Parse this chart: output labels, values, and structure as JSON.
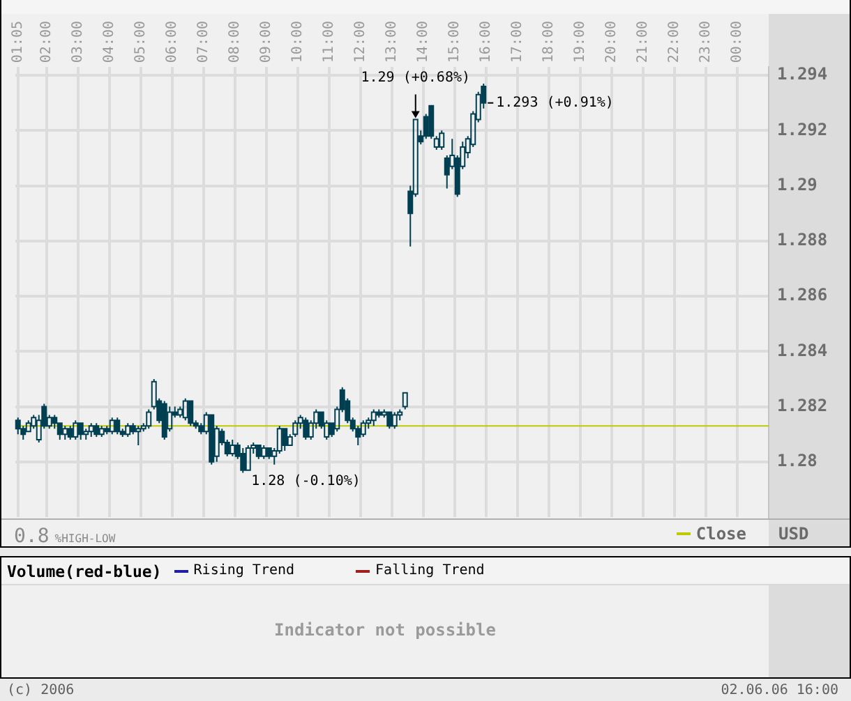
{
  "chart_data": [
    {
      "type": "candlestick",
      "color": "#003f52",
      "x": [
        1.0833,
        1.25,
        1.4167,
        1.5833,
        1.75,
        1.9167,
        2.0833,
        2.25,
        2.4167,
        2.5833,
        2.75,
        2.9167,
        3.0833,
        3.25,
        3.4167,
        3.5833,
        3.75,
        3.9167,
        4.0833,
        4.25,
        4.4167,
        4.5833,
        4.75,
        4.9167,
        5.0833,
        5.25,
        5.4167,
        5.5833,
        5.75,
        5.9167,
        6.0833,
        6.25,
        6.4167,
        6.5833,
        6.75,
        6.9167,
        7.0833,
        7.25,
        7.4167,
        7.5833,
        7.75,
        7.9167,
        8.0833,
        8.25,
        8.4167,
        8.5833,
        8.75,
        8.9167,
        9.0833,
        9.25,
        9.4167,
        9.5833,
        9.75,
        9.9167,
        10.0833,
        10.25,
        10.4167,
        10.5833,
        10.75,
        10.9167,
        11.0833,
        11.25,
        11.4167,
        11.5833,
        11.75,
        11.9167,
        12.0833,
        12.25,
        12.4167,
        12.5833,
        12.75,
        12.9167,
        13.0833,
        13.25,
        13.4167,
        13.5833,
        13.75,
        13.9167,
        14.0833,
        14.25,
        14.4167,
        14.5833,
        14.75,
        14.9167,
        15.0833,
        15.25,
        15.4167,
        15.5833,
        15.75,
        15.9167
      ],
      "ohlc": [
        [
          1.2815,
          1.2816,
          1.281,
          1.2812
        ],
        [
          1.2812,
          1.2813,
          1.2808,
          1.281
        ],
        [
          1.2811,
          1.2815,
          1.2811,
          1.2814
        ],
        [
          1.2813,
          1.2817,
          1.2812,
          1.2816
        ],
        [
          1.2808,
          1.2817,
          1.2807,
          1.2815
        ],
        [
          1.282,
          1.2821,
          1.2812,
          1.2813
        ],
        [
          1.2813,
          1.2817,
          1.2812,
          1.2816
        ],
        [
          1.2816,
          1.2817,
          1.2812,
          1.2814
        ],
        [
          1.2814,
          1.2814,
          1.2808,
          1.281
        ],
        [
          1.281,
          1.2813,
          1.2808,
          1.2812
        ],
        [
          1.2812,
          1.2813,
          1.2808,
          1.2809
        ],
        [
          1.2809,
          1.2815,
          1.2808,
          1.2814
        ],
        [
          1.2814,
          1.2814,
          1.2808,
          1.281
        ],
        [
          1.281,
          1.2812,
          1.2808,
          1.2811
        ],
        [
          1.2811,
          1.2814,
          1.2809,
          1.2813
        ],
        [
          1.2813,
          1.2814,
          1.2809,
          1.281
        ],
        [
          1.281,
          1.2813,
          1.2809,
          1.2812
        ],
        [
          1.2812,
          1.2813,
          1.281,
          1.2811
        ],
        [
          1.2811,
          1.2816,
          1.281,
          1.2815
        ],
        [
          1.2815,
          1.2816,
          1.281,
          1.2811
        ],
        [
          1.2811,
          1.2812,
          1.2809,
          1.281
        ],
        [
          1.281,
          1.2814,
          1.2809,
          1.2813
        ],
        [
          1.2813,
          1.2814,
          1.281,
          1.2811
        ],
        [
          1.2811,
          1.2813,
          1.2806,
          1.2812
        ],
        [
          1.2812,
          1.2814,
          1.2811,
          1.2813
        ],
        [
          1.2813,
          1.2819,
          1.2812,
          1.2818
        ],
        [
          1.282,
          1.283,
          1.2819,
          1.2829
        ],
        [
          1.2822,
          1.2823,
          1.2814,
          1.2815
        ],
        [
          1.2821,
          1.2822,
          1.2808,
          1.2809
        ],
        [
          1.2812,
          1.282,
          1.2811,
          1.2818
        ],
        [
          1.2818,
          1.282,
          1.2816,
          1.2817
        ],
        [
          1.2817,
          1.282,
          1.2816,
          1.2819
        ],
        [
          1.2816,
          1.2823,
          1.2815,
          1.2822
        ],
        [
          1.2822,
          1.2822,
          1.2813,
          1.2814
        ],
        [
          1.2814,
          1.2815,
          1.2812,
          1.2813
        ],
        [
          1.2813,
          1.2814,
          1.281,
          1.2811
        ],
        [
          1.2811,
          1.2818,
          1.281,
          1.2817
        ],
        [
          1.2817,
          1.2817,
          1.2799,
          1.28
        ],
        [
          1.2802,
          1.2813,
          1.28,
          1.2812
        ],
        [
          1.2811,
          1.2812,
          1.2806,
          1.2807
        ],
        [
          1.2807,
          1.2808,
          1.2802,
          1.2803
        ],
        [
          1.2803,
          1.2808,
          1.2802,
          1.2806
        ],
        [
          1.2806,
          1.2807,
          1.2801,
          1.2802
        ],
        [
          1.2803,
          1.2805,
          1.2796,
          1.2797
        ],
        [
          1.2797,
          1.2806,
          1.2797,
          1.2805
        ],
        [
          1.2805,
          1.2807,
          1.2803,
          1.2806
        ],
        [
          1.2806,
          1.2806,
          1.2801,
          1.2802
        ],
        [
          1.2802,
          1.2806,
          1.2801,
          1.2805
        ],
        [
          1.2805,
          1.2805,
          1.2801,
          1.2802
        ],
        [
          1.2802,
          1.2805,
          1.2799,
          1.2804
        ],
        [
          1.2804,
          1.2813,
          1.2803,
          1.2812
        ],
        [
          1.2812,
          1.2812,
          1.2804,
          1.2806
        ],
        [
          1.2806,
          1.281,
          1.2806,
          1.2809
        ],
        [
          1.281,
          1.2815,
          1.2809,
          1.2814
        ],
        [
          1.2814,
          1.2817,
          1.2812,
          1.2816
        ],
        [
          1.2815,
          1.2816,
          1.2808,
          1.2809
        ],
        [
          1.2809,
          1.2815,
          1.2808,
          1.2814
        ],
        [
          1.2814,
          1.2819,
          1.2812,
          1.2818
        ],
        [
          1.2818,
          1.2818,
          1.2812,
          1.2813
        ],
        [
          1.2809,
          1.2815,
          1.2808,
          1.2814
        ],
        [
          1.2814,
          1.2814,
          1.2809,
          1.281
        ],
        [
          1.2812,
          1.282,
          1.2811,
          1.2819
        ],
        [
          1.2826,
          1.2827,
          1.2818,
          1.2819
        ],
        [
          1.2822,
          1.2823,
          1.2814,
          1.2815
        ],
        [
          1.2815,
          1.2816,
          1.2811,
          1.2812
        ],
        [
          1.2812,
          1.2813,
          1.2806,
          1.2809
        ],
        [
          1.281,
          1.2815,
          1.2809,
          1.2814
        ],
        [
          1.2814,
          1.2816,
          1.2812,
          1.2815
        ],
        [
          1.2815,
          1.2819,
          1.2813,
          1.2818
        ],
        [
          1.2818,
          1.2819,
          1.2816,
          1.2817
        ],
        [
          1.2817,
          1.2819,
          1.2816,
          1.2818
        ],
        [
          1.2818,
          1.2818,
          1.2812,
          1.2813
        ],
        [
          1.2813,
          1.2818,
          1.2812,
          1.2817
        ],
        [
          1.2817,
          1.2819,
          1.2815,
          1.2818
        ],
        [
          1.282,
          1.2825,
          1.2819,
          1.2825
        ],
        [
          1.2898,
          1.29,
          1.2878,
          1.289
        ],
        [
          1.2897,
          1.2924,
          1.2896,
          1.2924
        ],
        [
          1.2918,
          1.292,
          1.2915,
          1.2916
        ],
        [
          1.2925,
          1.2926,
          1.2917,
          1.2918
        ],
        [
          1.2929,
          1.2929,
          1.2917,
          1.2918
        ],
        [
          1.2914,
          1.2918,
          1.2913,
          1.2917
        ],
        [
          1.2914,
          1.292,
          1.2913,
          1.2919
        ],
        [
          1.291,
          1.2911,
          1.2899,
          1.2904
        ],
        [
          1.2907,
          1.2917,
          1.2906,
          1.2911
        ],
        [
          1.291,
          1.2911,
          1.2896,
          1.2897
        ],
        [
          1.2907,
          1.2916,
          1.2906,
          1.2914
        ],
        [
          1.2912,
          1.2918,
          1.291,
          1.2917
        ],
        [
          1.2915,
          1.2927,
          1.2914,
          1.2926
        ],
        [
          1.2924,
          1.2934,
          1.2923,
          1.2933
        ],
        [
          1.2936,
          1.2937,
          1.2928,
          1.293
        ]
      ],
      "xlim": [
        1,
        25
      ],
      "xticks": [
        {
          "value": 1.0833,
          "label": "01:05"
        },
        {
          "value": 2,
          "label": "02:00"
        },
        {
          "value": 3,
          "label": "03:00"
        },
        {
          "value": 4,
          "label": "04:00"
        },
        {
          "value": 5,
          "label": "05:00"
        },
        {
          "value": 6,
          "label": "06:00"
        },
        {
          "value": 7,
          "label": "07:00"
        },
        {
          "value": 8,
          "label": "08:00"
        },
        {
          "value": 9,
          "label": "09:00"
        },
        {
          "value": 10,
          "label": "10:00"
        },
        {
          "value": 11,
          "label": "11:00"
        },
        {
          "value": 12,
          "label": "12:00"
        },
        {
          "value": 13,
          "label": "13:00"
        },
        {
          "value": 14,
          "label": "14:00"
        },
        {
          "value": 15,
          "label": "15:00"
        },
        {
          "value": 16,
          "label": "16:00"
        },
        {
          "value": 17,
          "label": "17:00"
        },
        {
          "value": 18,
          "label": "18:00"
        },
        {
          "value": 19,
          "label": "19:00"
        },
        {
          "value": 20,
          "label": "20:00"
        },
        {
          "value": 21,
          "label": "21:00"
        },
        {
          "value": 22,
          "label": "22:00"
        },
        {
          "value": 23,
          "label": "23:00"
        },
        {
          "value": 24,
          "label": "00:00"
        }
      ],
      "ylim": [
        1.278,
        1.2943
      ],
      "yticks": [
        1.28,
        1.282,
        1.284,
        1.286,
        1.288,
        1.29,
        1.292,
        1.294
      ],
      "ylabel": "USD",
      "grid": true,
      "legend": "bottom right",
      "ref_lines": [
        {
          "axis": "y",
          "value": 1.2813,
          "label": "Close",
          "color": "#c0c800"
        }
      ],
      "annotations": [
        {
          "text": "1.29 (+0.68%)",
          "x": 13.75,
          "y": 1.2924
        },
        {
          "text": "1.293 (+0.91%)",
          "x": 15.9167,
          "y": 1.293
        },
        {
          "text": "1.28 (-0.10%)",
          "x": 8.25,
          "y": 1.2796
        },
        "0.8 %HIGH-LOW"
      ]
    },
    {
      "type": "other",
      "title": "Volume(red-blue)",
      "legend": "top left",
      "series": [
        {
          "name": "Rising Trend",
          "color": "#1f1f9f"
        },
        {
          "name": "Falling Trend",
          "color": "#9f1f1f"
        }
      ],
      "annotations": [
        "Indicator not possible",
        "(c) 2006",
        "02.06.06 16:00"
      ]
    }
  ]
}
